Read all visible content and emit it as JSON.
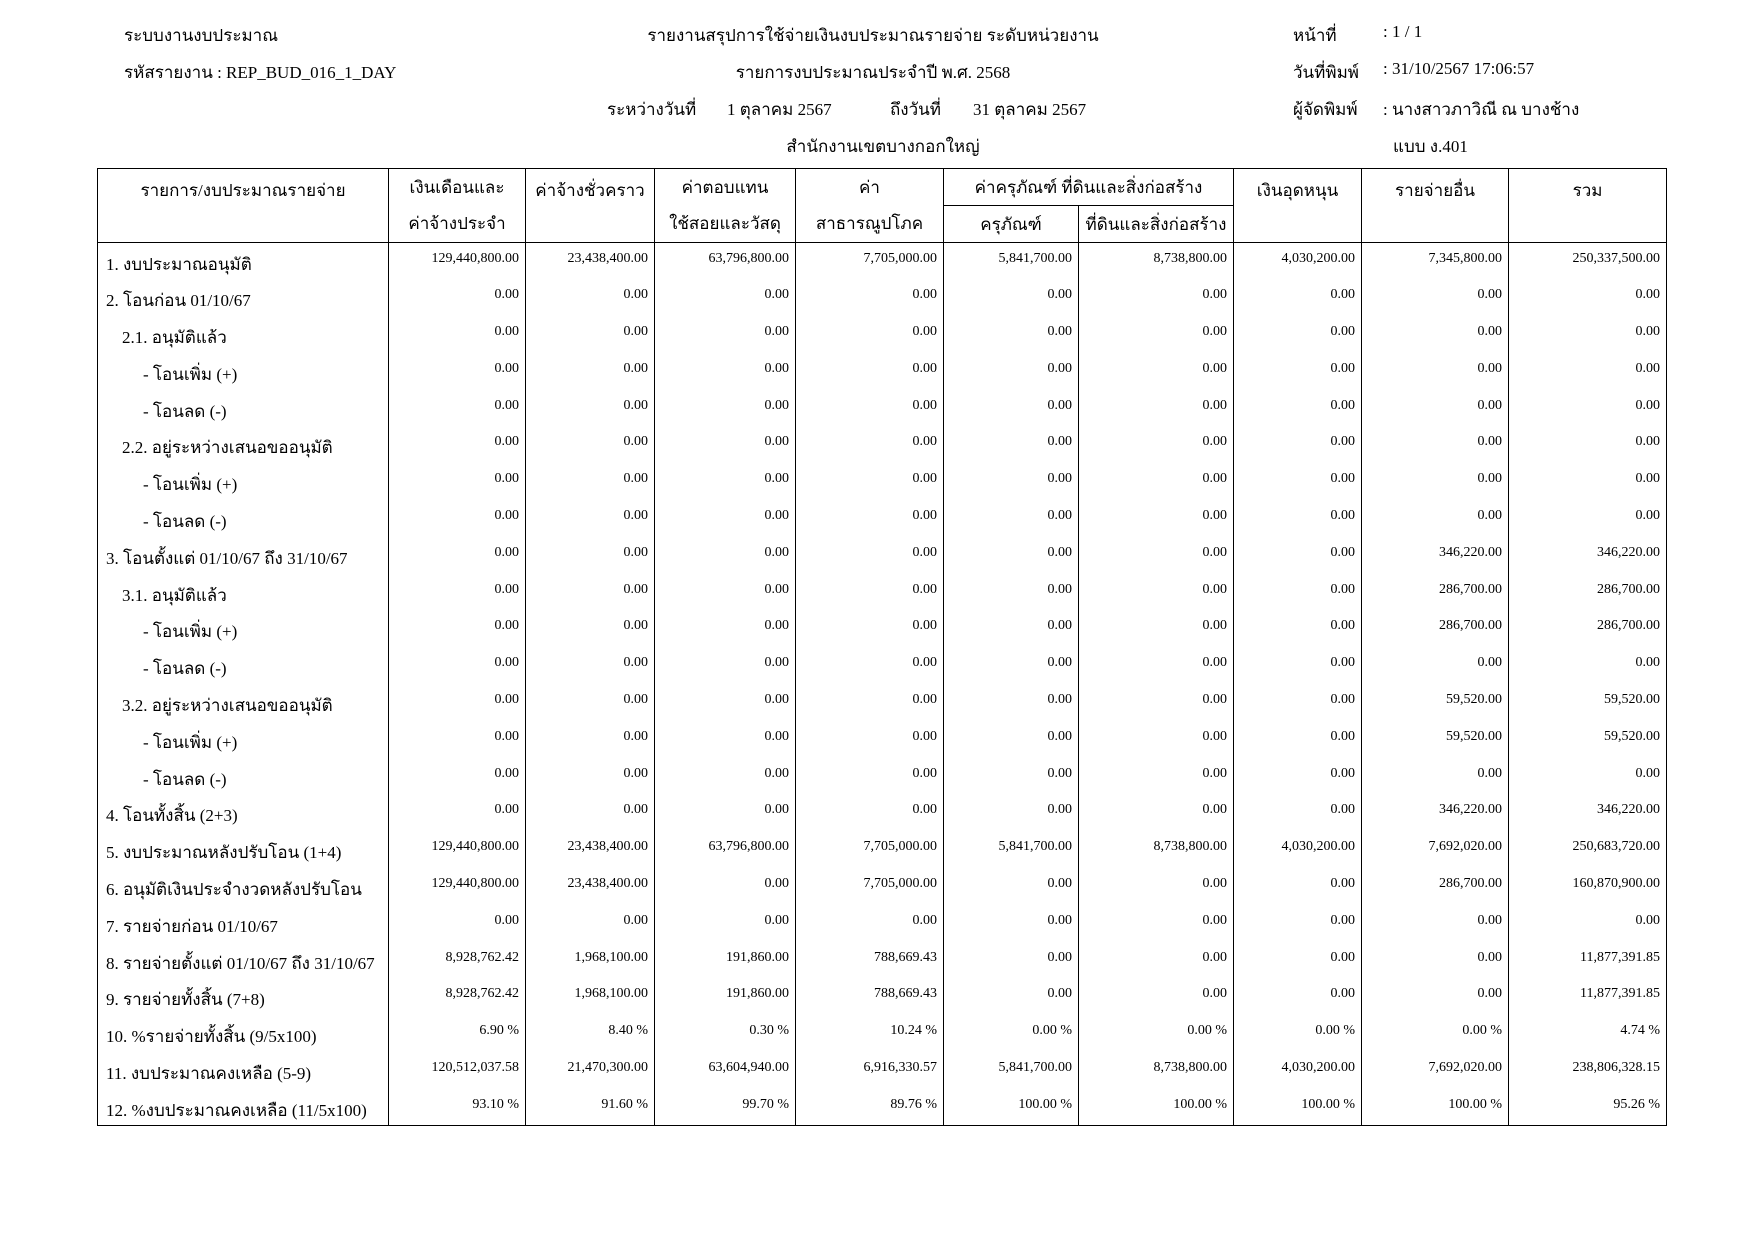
{
  "header": {
    "system": "ระบบงานงบประมาณ",
    "report_code": "รหัสรายงาน : REP_BUD_016_1_DAY",
    "title": "รายงานสรุปการใช้จ่ายเงินงบประมาณรายจ่าย ระดับหน่วยงาน",
    "subtitle": "รายการงบประมาณประจำปี พ.ศ. 2568",
    "from_label": "ระหว่างวันที่",
    "from_date": "1 ตุลาคม 2567",
    "to_label": "ถึงวันที่",
    "to_date": "31 ตุลาคม 2567",
    "office": "สำนักงานเขตบางกอกใหญ่",
    "page_label": "หน้าที่",
    "page_value": ": 1 / 1",
    "print_date_label": "วันที่พิมพ์",
    "print_date_value": ": 31/10/2567 17:06:57",
    "printer_label": "ผู้จัดพิมพ์",
    "printer_value": ": นางสาวภาวิณี  ณ บางช้าง",
    "form": "แบบ ง.401"
  },
  "table": {
    "headers": {
      "item": "รายการ/งบประมาณรายจ่าย",
      "salary_1": "เงินเดือนและ",
      "salary_2": "ค่าจ้างประจำ",
      "temp": "ค่าจ้างชั่วคราว",
      "compensation_1": "ค่าตอบแทน",
      "compensation_2": "ใช้สอยและวัสดุ",
      "utilities_1": "ค่า",
      "utilities_2": "สาธารณูปโภค",
      "capital_group": "ค่าครุภัณฑ์ ที่ดินและสิ่งก่อสร้าง",
      "equipment": "ครุภัณฑ์",
      "land": "ที่ดินและสิ่งก่อสร้าง",
      "subsidy": "เงินอุดหนุน",
      "other": "รายจ่ายอื่น",
      "total": "รวม"
    },
    "rows": [
      {
        "label": "1. งบประมาณอนุมัติ",
        "level": 0,
        "values": [
          "129,440,800.00",
          "23,438,400.00",
          "63,796,800.00",
          "7,705,000.00",
          "5,841,700.00",
          "8,738,800.00",
          "4,030,200.00",
          "7,345,800.00",
          "250,337,500.00"
        ]
      },
      {
        "label": "2. โอนก่อน 01/10/67",
        "level": 0,
        "values": [
          "0.00",
          "0.00",
          "0.00",
          "0.00",
          "0.00",
          "0.00",
          "0.00",
          "0.00",
          "0.00"
        ]
      },
      {
        "label": "2.1. อนุมัติแล้ว",
        "level": 1,
        "values": [
          "0.00",
          "0.00",
          "0.00",
          "0.00",
          "0.00",
          "0.00",
          "0.00",
          "0.00",
          "0.00"
        ]
      },
      {
        "label": "- โอนเพิ่ม (+)",
        "level": 2,
        "values": [
          "0.00",
          "0.00",
          "0.00",
          "0.00",
          "0.00",
          "0.00",
          "0.00",
          "0.00",
          "0.00"
        ]
      },
      {
        "label": "- โอนลด (-)",
        "level": 2,
        "values": [
          "0.00",
          "0.00",
          "0.00",
          "0.00",
          "0.00",
          "0.00",
          "0.00",
          "0.00",
          "0.00"
        ]
      },
      {
        "label": "2.2. อยู่ระหว่างเสนอขออนุมัติ",
        "level": 1,
        "values": [
          "0.00",
          "0.00",
          "0.00",
          "0.00",
          "0.00",
          "0.00",
          "0.00",
          "0.00",
          "0.00"
        ]
      },
      {
        "label": "- โอนเพิ่ม (+)",
        "level": 2,
        "values": [
          "0.00",
          "0.00",
          "0.00",
          "0.00",
          "0.00",
          "0.00",
          "0.00",
          "0.00",
          "0.00"
        ]
      },
      {
        "label": "- โอนลด (-)",
        "level": 2,
        "values": [
          "0.00",
          "0.00",
          "0.00",
          "0.00",
          "0.00",
          "0.00",
          "0.00",
          "0.00",
          "0.00"
        ]
      },
      {
        "label": "3. โอนตั้งแต่ 01/10/67 ถึง 31/10/67",
        "level": 0,
        "values": [
          "0.00",
          "0.00",
          "0.00",
          "0.00",
          "0.00",
          "0.00",
          "0.00",
          "346,220.00",
          "346,220.00"
        ]
      },
      {
        "label": "3.1. อนุมัติแล้ว",
        "level": 1,
        "values": [
          "0.00",
          "0.00",
          "0.00",
          "0.00",
          "0.00",
          "0.00",
          "0.00",
          "286,700.00",
          "286,700.00"
        ]
      },
      {
        "label": "- โอนเพิ่ม (+)",
        "level": 2,
        "values": [
          "0.00",
          "0.00",
          "0.00",
          "0.00",
          "0.00",
          "0.00",
          "0.00",
          "286,700.00",
          "286,700.00"
        ]
      },
      {
        "label": "- โอนลด (-)",
        "level": 2,
        "values": [
          "0.00",
          "0.00",
          "0.00",
          "0.00",
          "0.00",
          "0.00",
          "0.00",
          "0.00",
          "0.00"
        ]
      },
      {
        "label": "3.2. อยู่ระหว่างเสนอขออนุมัติ",
        "level": 1,
        "values": [
          "0.00",
          "0.00",
          "0.00",
          "0.00",
          "0.00",
          "0.00",
          "0.00",
          "59,520.00",
          "59,520.00"
        ]
      },
      {
        "label": "- โอนเพิ่ม (+)",
        "level": 2,
        "values": [
          "0.00",
          "0.00",
          "0.00",
          "0.00",
          "0.00",
          "0.00",
          "0.00",
          "59,520.00",
          "59,520.00"
        ]
      },
      {
        "label": "- โอนลด (-)",
        "level": 2,
        "values": [
          "0.00",
          "0.00",
          "0.00",
          "0.00",
          "0.00",
          "0.00",
          "0.00",
          "0.00",
          "0.00"
        ]
      },
      {
        "label": "4. โอนทั้งสิ้น (2+3)",
        "level": 0,
        "values": [
          "0.00",
          "0.00",
          "0.00",
          "0.00",
          "0.00",
          "0.00",
          "0.00",
          "346,220.00",
          "346,220.00"
        ]
      },
      {
        "label": "5. งบประมาณหลังปรับโอน (1+4)",
        "level": 0,
        "values": [
          "129,440,800.00",
          "23,438,400.00",
          "63,796,800.00",
          "7,705,000.00",
          "5,841,700.00",
          "8,738,800.00",
          "4,030,200.00",
          "7,692,020.00",
          "250,683,720.00"
        ]
      },
      {
        "label": "6. อนุมัติเงินประจำงวดหลังปรับโอน",
        "level": 0,
        "values": [
          "129,440,800.00",
          "23,438,400.00",
          "0.00",
          "7,705,000.00",
          "0.00",
          "0.00",
          "0.00",
          "286,700.00",
          "160,870,900.00"
        ]
      },
      {
        "label": "7. รายจ่ายก่อน 01/10/67",
        "level": 0,
        "values": [
          "0.00",
          "0.00",
          "0.00",
          "0.00",
          "0.00",
          "0.00",
          "0.00",
          "0.00",
          "0.00"
        ]
      },
      {
        "label": "8. รายจ่ายตั้งแต่ 01/10/67 ถึง 31/10/67",
        "level": 0,
        "values": [
          "8,928,762.42",
          "1,968,100.00",
          "191,860.00",
          "788,669.43",
          "0.00",
          "0.00",
          "0.00",
          "0.00",
          "11,877,391.85"
        ]
      },
      {
        "label": "9. รายจ่ายทั้งสิ้น (7+8)",
        "level": 0,
        "values": [
          "8,928,762.42",
          "1,968,100.00",
          "191,860.00",
          "788,669.43",
          "0.00",
          "0.00",
          "0.00",
          "0.00",
          "11,877,391.85"
        ]
      },
      {
        "label": "10. %รายจ่ายทั้งสิ้น (9/5x100)",
        "level": 0,
        "values": [
          "6.90 %",
          "8.40 %",
          "0.30 %",
          "10.24 %",
          "0.00 %",
          "0.00 %",
          "0.00 %",
          "0.00 %",
          "4.74 %"
        ]
      },
      {
        "label": "11. งบประมาณคงเหลือ (5-9)",
        "level": 0,
        "values": [
          "120,512,037.58",
          "21,470,300.00",
          "63,604,940.00",
          "6,916,330.57",
          "5,841,700.00",
          "8,738,800.00",
          "4,030,200.00",
          "7,692,020.00",
          "238,806,328.15"
        ]
      },
      {
        "label": "12. %งบประมาณคงเหลือ (11/5x100)",
        "level": 0,
        "values": [
          "93.10 %",
          "91.60 %",
          "99.70 %",
          "89.76 %",
          "100.00 %",
          "100.00 %",
          "100.00 %",
          "100.00 %",
          "95.26 %"
        ]
      }
    ]
  }
}
